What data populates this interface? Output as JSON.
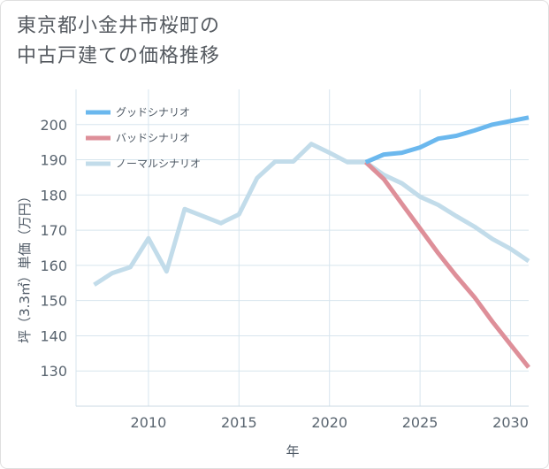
{
  "title": {
    "line1": "東京都小金井市桜町の",
    "line2": "中古戸建ての価格推移"
  },
  "chart_data": {
    "type": "line",
    "xlabel": "年",
    "ylabel": "坪（3.3㎡）単価（万円）",
    "xlim": [
      2006,
      2031
    ],
    "ylim": [
      120,
      210
    ],
    "xticks": [
      2010,
      2015,
      2020,
      2025,
      2030
    ],
    "yticks": [
      130,
      140,
      150,
      160,
      170,
      180,
      190,
      200
    ],
    "grid": true,
    "legend_position": "top-left",
    "series": [
      {
        "name": "グッドシナリオ",
        "color": "#6bb8ee",
        "x": [
          2022,
          2023,
          2024,
          2025,
          2026,
          2027,
          2028,
          2029,
          2030,
          2031
        ],
        "values": [
          189.3,
          191.5,
          192.0,
          193.5,
          196.0,
          196.8,
          198.3,
          200.0,
          201.0,
          202.0
        ]
      },
      {
        "name": "バッドシナリオ",
        "color": "#de8f99",
        "x": [
          2022,
          2023,
          2024,
          2025,
          2026,
          2027,
          2028,
          2029,
          2030,
          2031
        ],
        "values": [
          189.3,
          184.5,
          177.5,
          170.5,
          163.5,
          157.0,
          151.0,
          144.0,
          137.5,
          131.0
        ]
      },
      {
        "name": "ノーマルシナリオ",
        "color": "#c2dcea",
        "x": [
          2007,
          2008,
          2009,
          2010,
          2011,
          2012,
          2013,
          2014,
          2015,
          2016,
          2017,
          2018,
          2019,
          2020,
          2021,
          2022,
          2023,
          2024,
          2025,
          2026,
          2027,
          2028,
          2029,
          2030,
          2031
        ],
        "values": [
          154.5,
          157.8,
          159.5,
          167.7,
          158.3,
          176.0,
          174.0,
          172.0,
          174.5,
          184.8,
          189.5,
          189.5,
          194.5,
          192.0,
          189.3,
          189.3,
          185.7,
          183.3,
          179.5,
          177.2,
          174.0,
          171.0,
          167.5,
          164.7,
          161.2
        ]
      }
    ]
  }
}
